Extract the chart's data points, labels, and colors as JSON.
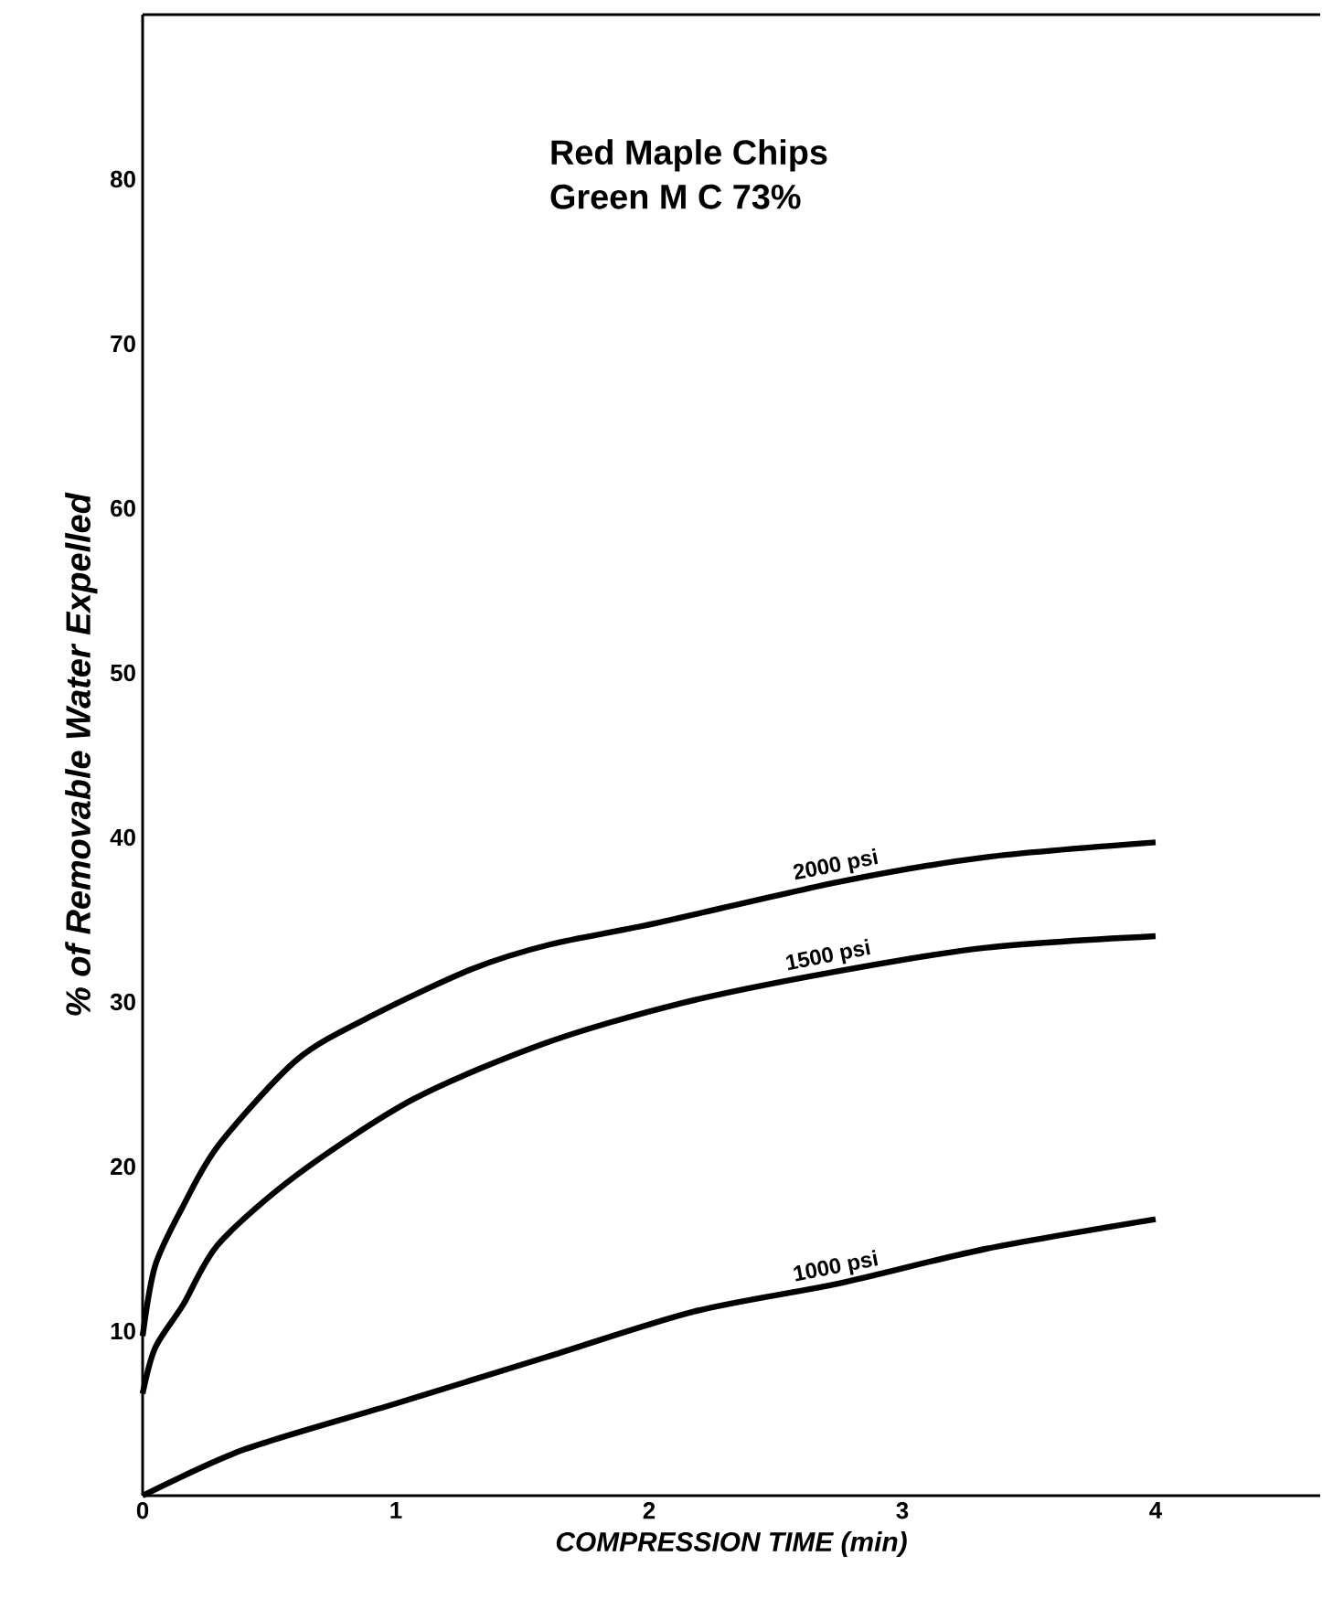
{
  "chart_data": {
    "type": "line",
    "xlabel": "COMPRESSION TIME (min)",
    "ylabel": "% of Removable Water Expelled",
    "xlim": [
      0,
      4.65
    ],
    "ylim": [
      0,
      90
    ],
    "xticks": [
      0,
      1,
      2,
      3,
      4
    ],
    "yticks": [
      10,
      20,
      30,
      40,
      50,
      60,
      70,
      80
    ],
    "annotations": [
      "Red Maple Chips",
      "Green M C 73%"
    ],
    "series": [
      {
        "name": "2000 psi",
        "color": "#000000",
        "x": [
          0,
          0.05,
          0.16,
          0.3,
          0.61,
          0.91,
          1.3,
          1.61,
          2.03,
          2.75,
          3.33,
          4.0
        ],
        "values": [
          9.7,
          14,
          17.6,
          21.3,
          26.5,
          29.2,
          32.0,
          33.5,
          34.8,
          37.3,
          38.8,
          39.7
        ]
      },
      {
        "name": "1500 psi",
        "color": "#000000",
        "x": [
          0,
          0.05,
          0.16,
          0.3,
          0.61,
          1.07,
          1.59,
          2.12,
          2.72,
          3.33,
          4.0
        ],
        "values": [
          6.2,
          9,
          11.6,
          15.3,
          19.5,
          24.1,
          27.5,
          29.9,
          31.8,
          33.3,
          34.0
        ]
      },
      {
        "name": "1000 psi",
        "color": "#000000",
        "x": [
          0,
          0.4,
          1.0,
          1.59,
          2.18,
          2.75,
          3.33,
          4.0
        ],
        "values": [
          0,
          2.8,
          5.6,
          8.4,
          11.2,
          12.9,
          15.0,
          16.8
        ]
      }
    ]
  }
}
